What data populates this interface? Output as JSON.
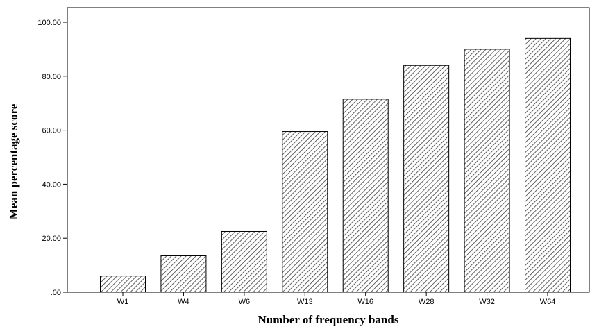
{
  "chart_data": {
    "type": "bar",
    "categories": [
      "W1",
      "W4",
      "W6",
      "W13",
      "W16",
      "W28",
      "W32",
      "W64"
    ],
    "values": [
      6,
      13.5,
      22.5,
      59.5,
      71.5,
      84,
      90,
      94
    ],
    "xlabel": "Number of frequency bands",
    "ylabel": "Mean percentage score",
    "ylim": [
      0,
      100
    ],
    "yticks": [
      ".00",
      "20.00",
      "40.00",
      "60.00",
      "80.00",
      "100.00"
    ],
    "ytick_values": [
      0,
      20,
      40,
      60,
      80,
      100
    ],
    "grid": false,
    "legend": "none",
    "bar_fill": "hatched",
    "bar_color": "#3a3a3a"
  }
}
